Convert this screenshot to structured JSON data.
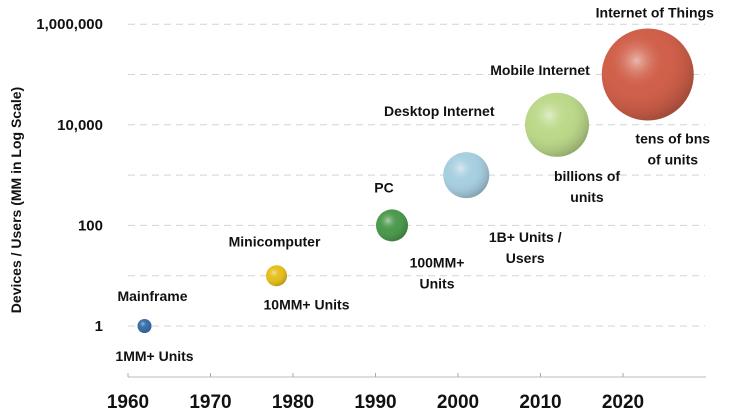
{
  "chart_data": {
    "type": "scatter",
    "subtype": "bubble",
    "title": "",
    "xlabel": "",
    "ylabel": "Devices / Users (MM in Log Scale)",
    "y_scale": "log",
    "ylim": [
      1,
      1000000
    ],
    "xlim": [
      1960,
      2027
    ],
    "grid": "horizontal dashed",
    "y_ticks": [
      {
        "value": 1,
        "label": "1"
      },
      {
        "value": 100,
        "label": "100"
      },
      {
        "value": 10000,
        "label": "10,000"
      },
      {
        "value": 1000000,
        "label": "1,000,000"
      }
    ],
    "x_ticks": [
      {
        "value": 1960,
        "label": "1960"
      },
      {
        "value": 1970,
        "label": "1970"
      },
      {
        "value": 1980,
        "label": "1980"
      },
      {
        "value": 1990,
        "label": "1990"
      },
      {
        "value": 2000,
        "label": "2000"
      },
      {
        "value": 2010,
        "label": "2010"
      },
      {
        "value": 2020,
        "label": "2020"
      }
    ],
    "points": [
      {
        "name": "Mainframe",
        "x": 1962,
        "y": 1,
        "note": [
          "1MM+ Units"
        ],
        "color": "#3a6faa"
      },
      {
        "name": "Minicomputer",
        "x": 1978,
        "y": 10,
        "note": [
          "10MM+ Units"
        ],
        "color": "#e6bf1e"
      },
      {
        "name": "PC",
        "x": 1992,
        "y": 100,
        "note": [
          "100MM+",
          "Units"
        ],
        "color": "#4d9a4f"
      },
      {
        "name": "Desktop Internet",
        "x": 2001,
        "y": 1000,
        "note": [
          "1B+ Units /",
          "Users"
        ],
        "color": "#a8cfe0"
      },
      {
        "name": "Mobile Internet",
        "x": 2012,
        "y": 10000,
        "note": [
          "billions of",
          "units"
        ],
        "color": "#bcd98a"
      },
      {
        "name": "Internet of Things",
        "x": 2023,
        "y": 100000,
        "note": [
          "tens of bns",
          "of units"
        ],
        "color": "#d0604a"
      }
    ]
  }
}
